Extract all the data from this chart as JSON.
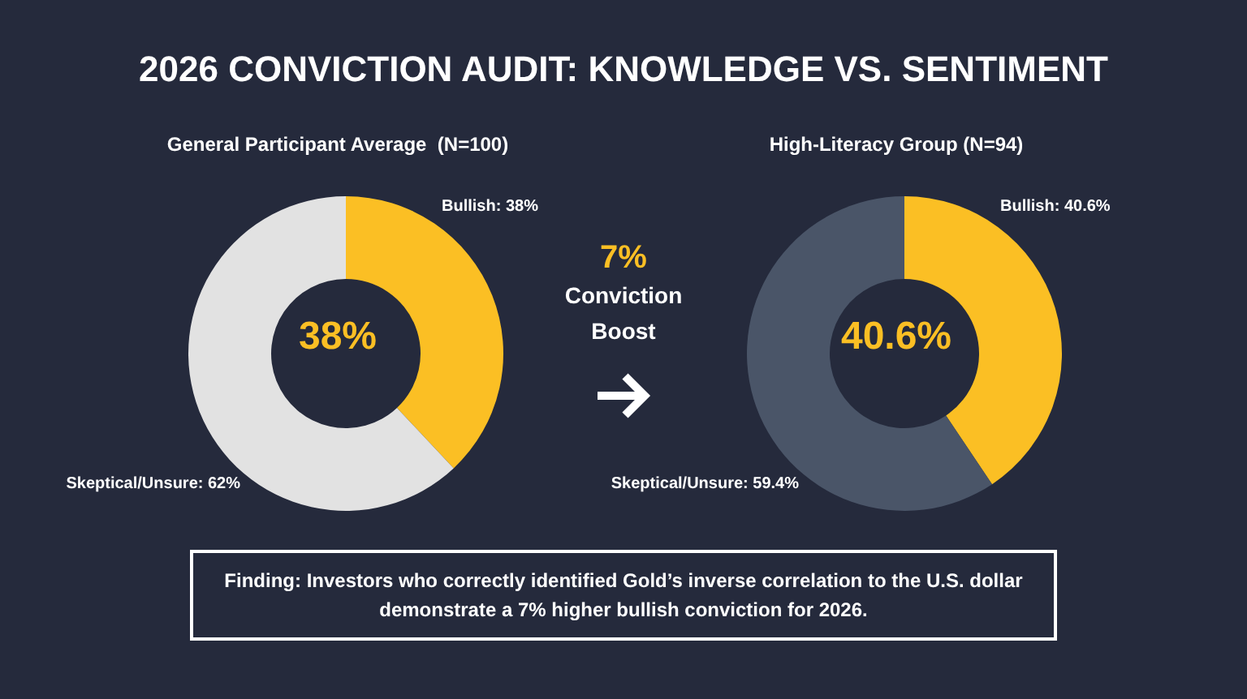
{
  "chart_data": [
    {
      "type": "other",
      "title": "2026 CONVICTION AUDIT: KNOWLEDGE VS. SENTIMENT"
    },
    {
      "type": "donut",
      "title": "General Participant Average  (N=100)",
      "categories": [
        "Bullish: 38%",
        "Skeptical/Unsure: 62%"
      ],
      "values": [
        38,
        62
      ],
      "colors": [
        "#fbbf24",
        "#e2e2e2"
      ],
      "annotations": [
        "38%"
      ]
    },
    {
      "type": "other",
      "annotations": [
        "7%",
        "Conviction Boost"
      ]
    },
    {
      "type": "donut",
      "title": "High-Literacy Group (N=94)",
      "categories": [
        "Bullish: 40.6%",
        "Skeptical/Unsure: 59.4%"
      ],
      "values": [
        40.6,
        59.4
      ],
      "colors": [
        "#fbbf24",
        "#4a5568"
      ],
      "annotations": [
        "40.6%"
      ]
    },
    {
      "type": "other",
      "annotations": [
        "Finding: Investors who correctly identified Gold’s inverse correlation to the U.S. dollar demonstrate a 7% higher bullish conviction for 2026."
      ]
    }
  ]
}
